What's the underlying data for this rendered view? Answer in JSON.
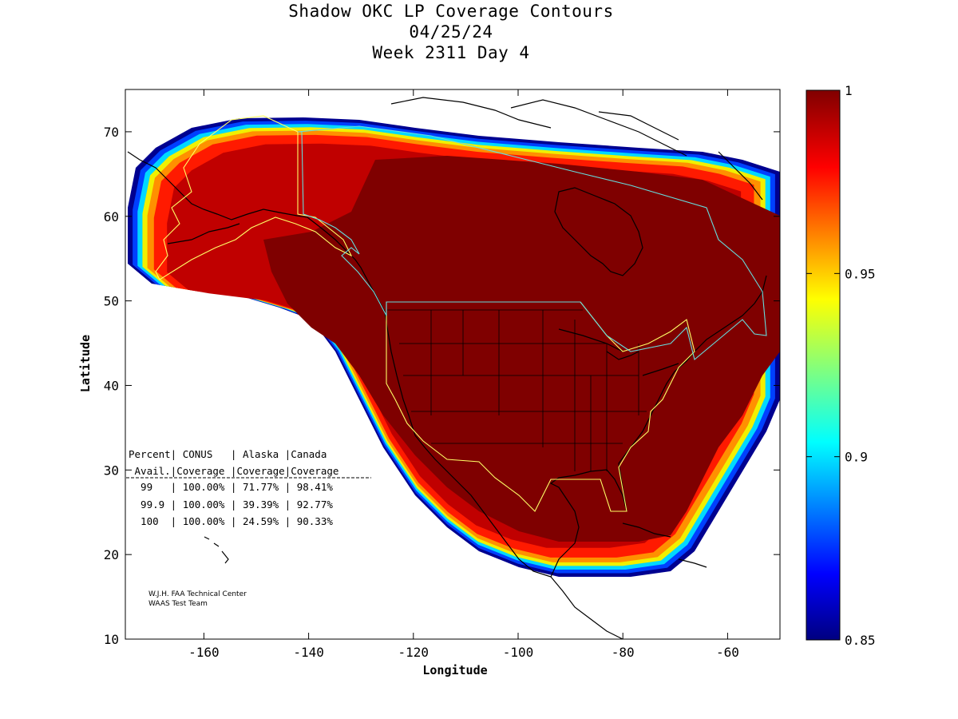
{
  "title": {
    "line1": "Shadow OKC LP Coverage Contours",
    "line2": "04/25/24",
    "line3": "Week 2311 Day 4"
  },
  "axes": {
    "xlabel": "Longitude",
    "ylabel": "Latitude",
    "xticks": [
      "-160",
      "-140",
      "-120",
      "-100",
      "-80",
      "-60"
    ],
    "yticks": [
      "70",
      "60",
      "50",
      "40",
      "30",
      "20",
      "10"
    ],
    "xlim": [
      -175,
      -50
    ],
    "ylim": [
      10,
      75
    ]
  },
  "colorbar": {
    "ticks": [
      "1",
      "0.95",
      "0.9",
      "0.85"
    ],
    "range": [
      0.85,
      1
    ],
    "colormap": "jet"
  },
  "table": {
    "header1": "Percent| CONUS   | Alaska |Canada",
    "header2": " Avail.|Coverage |Coverage|Coverage",
    "rows": [
      "  99   | 100.00% | 71.77% | 98.41%",
      "  99.9 | 100.00% | 39.39% | 92.77%",
      "  100  | 100.00% | 24.59% | 90.33%"
    ]
  },
  "credit": {
    "line1": "W.J.H. FAA Technical Center",
    "line2": "WAAS Test Team"
  },
  "colors": {
    "max": "#7f0000",
    "high": "#c00000",
    "red": "#ff1a00",
    "orange": "#ff9000",
    "yellow": "#f0f000",
    "cyan": "#00d8ff",
    "blue": "#0040ff",
    "navy": "#000090",
    "conus_boundary": "#ffff66",
    "canada_boundary": "#66dddd"
  }
}
